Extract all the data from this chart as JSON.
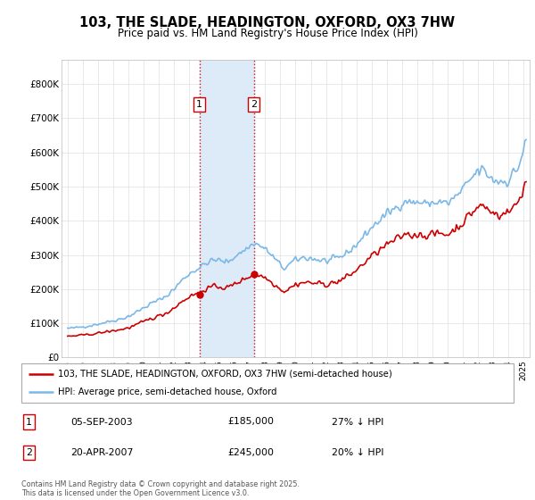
{
  "title": "103, THE SLADE, HEADINGTON, OXFORD, OX3 7HW",
  "subtitle": "Price paid vs. HM Land Registry's House Price Index (HPI)",
  "legend_entry1": "103, THE SLADE, HEADINGTON, OXFORD, OX3 7HW (semi-detached house)",
  "legend_entry2": "HPI: Average price, semi-detached house, Oxford",
  "transaction1_date": "05-SEP-2003",
  "transaction1_price": 185000,
  "transaction1_label": "27% ↓ HPI",
  "transaction2_date": "20-APR-2007",
  "transaction2_price": 245000,
  "transaction2_label": "20% ↓ HPI",
  "footer": "Contains HM Land Registry data © Crown copyright and database right 2025.\nThis data is licensed under the Open Government Licence v3.0.",
  "hpi_color": "#7ab8e8",
  "price_color": "#cc0000",
  "shade_color": "#ddeaf8",
  "t1_x": 2003.67,
  "t2_x": 2007.25,
  "xlim_min": 1994.6,
  "xlim_max": 2025.4,
  "ylim_min": 0,
  "ylim_max": 870000
}
